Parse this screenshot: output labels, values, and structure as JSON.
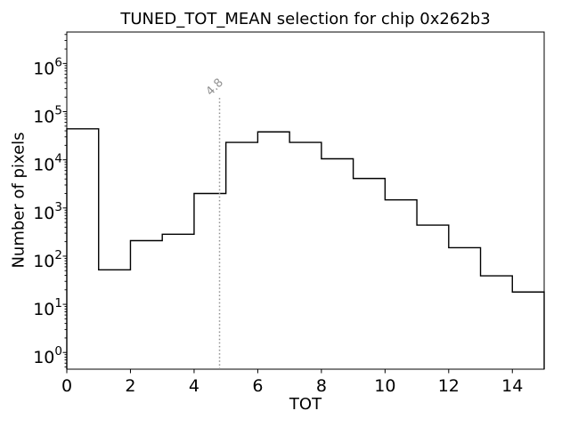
{
  "figure": {
    "background": "#ffffff"
  },
  "chart_data": {
    "type": "bar",
    "subtype": "step-histogram",
    "title": "TUNED_TOT_MEAN selection for chip 0x262b3",
    "xlabel": "TOT",
    "ylabel": "Number of pixels",
    "yscale": "log",
    "grid": false,
    "xlim": [
      0,
      15
    ],
    "ylim": [
      0.45,
      4500000
    ],
    "bin_edges": [
      0,
      1,
      2,
      3,
      4,
      5,
      6,
      7,
      8,
      9,
      10,
      11,
      12,
      13,
      14,
      15
    ],
    "counts": [
      44000,
      52,
      210,
      285,
      2000,
      23000,
      38000,
      23000,
      10500,
      4100,
      1470,
      440,
      150,
      39,
      18
    ],
    "x_ticks": [
      0,
      2,
      4,
      6,
      8,
      10,
      12,
      14
    ],
    "y_tick_exponents": [
      0,
      1,
      2,
      3,
      4,
      5,
      6
    ],
    "line_color": "#000000",
    "axis_color": "#000000",
    "selection_line": {
      "x": 4.8,
      "label": "4.8",
      "color": "#909090",
      "style": "dotted"
    }
  }
}
